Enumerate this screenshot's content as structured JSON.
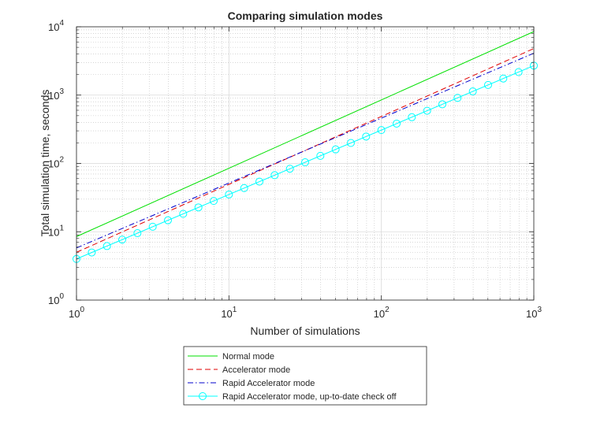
{
  "chart_data": {
    "type": "line",
    "title": "Comparing simulation modes",
    "xlabel": "Number of simulations",
    "ylabel": "Total simulation time, seconds",
    "xscale": "log",
    "yscale": "log",
    "xlim": [
      1,
      1000
    ],
    "ylim": [
      1,
      10000
    ],
    "x_ticks": [
      {
        "base": "10",
        "exp": "0"
      },
      {
        "base": "10",
        "exp": "1"
      },
      {
        "base": "10",
        "exp": "2"
      },
      {
        "base": "10",
        "exp": "3"
      }
    ],
    "y_ticks": [
      {
        "base": "10",
        "exp": "0"
      },
      {
        "base": "10",
        "exp": "1"
      },
      {
        "base": "10",
        "exp": "2"
      },
      {
        "base": "10",
        "exp": "3"
      },
      {
        "base": "10",
        "exp": "4"
      }
    ],
    "grid": "major and minor",
    "legend_position": "bottom-outside",
    "series": [
      {
        "name": "Normal mode",
        "color": "#00e000",
        "style": "solid",
        "marker": "none",
        "x": [
          1,
          1000
        ],
        "y": [
          8.5,
          8500
        ]
      },
      {
        "name": "Accelerator mode",
        "color": "#e00000",
        "style": "dashed",
        "marker": "none",
        "x": [
          1,
          1000
        ],
        "y": [
          5.0,
          4800
        ]
      },
      {
        "name": "Rapid Accelerator mode",
        "color": "#0000cc",
        "style": "dashdot",
        "marker": "none",
        "x": [
          1,
          1000
        ],
        "y": [
          5.8,
          4100
        ]
      },
      {
        "name": "Rapid Accelerator mode, up-to-date check off",
        "color": "#00ffff",
        "style": "solid",
        "marker": "circle",
        "x": [
          1,
          1000
        ],
        "y": [
          4.0,
          2700
        ]
      }
    ]
  }
}
